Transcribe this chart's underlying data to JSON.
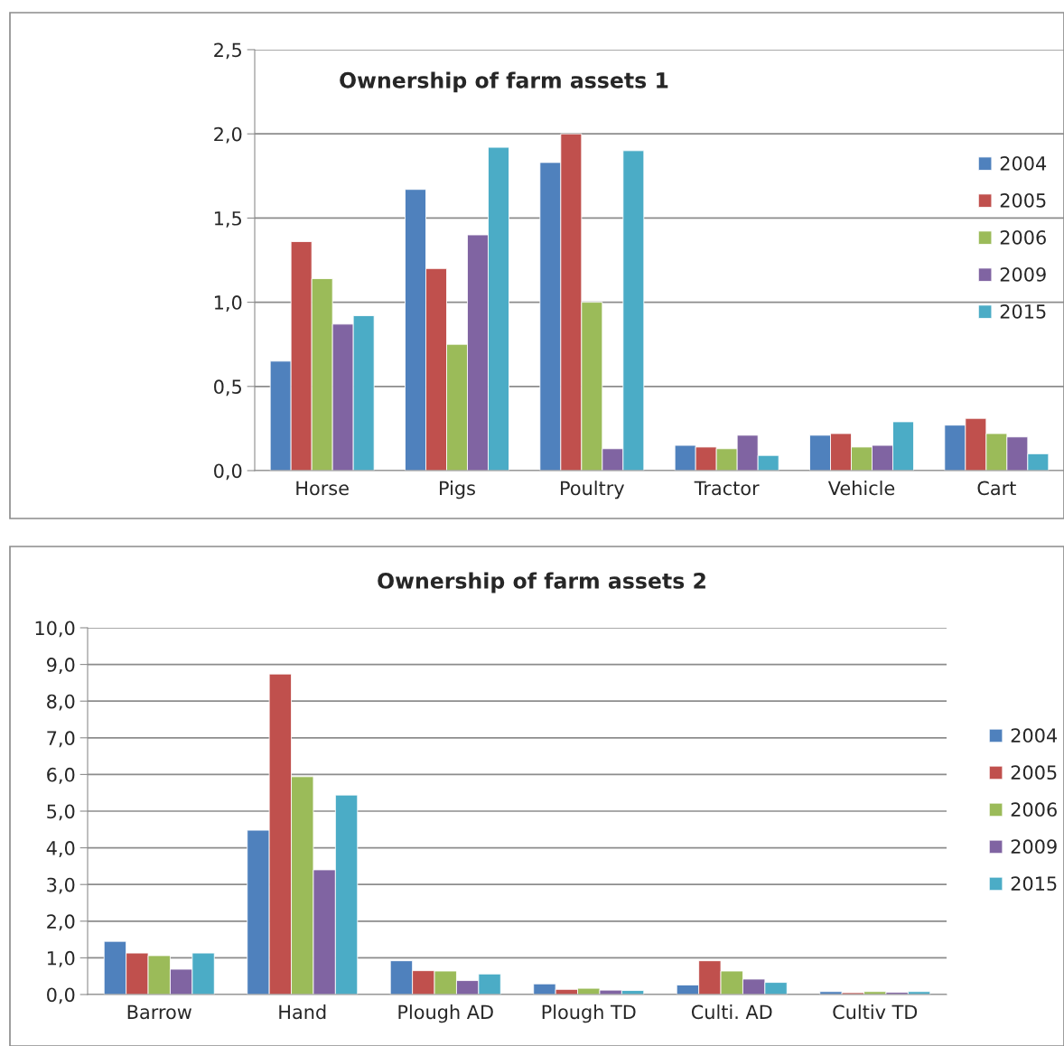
{
  "chart_data": [
    {
      "type": "bar",
      "title": "Ownership of farm assets 1",
      "categories": [
        "Horse",
        "Pigs",
        "Poultry",
        "Tractor",
        "Vehicle",
        "Cart"
      ],
      "series": [
        {
          "name": "2004",
          "color": "#4f81bd",
          "values": [
            0.65,
            1.67,
            1.83,
            0.15,
            0.21,
            0.27
          ]
        },
        {
          "name": "2005",
          "color": "#c0504d",
          "values": [
            1.36,
            1.2,
            2.0,
            0.14,
            0.22,
            0.31
          ]
        },
        {
          "name": "2006",
          "color": "#9bbb59",
          "values": [
            1.14,
            0.75,
            1.0,
            0.13,
            0.14,
            0.22
          ]
        },
        {
          "name": "2009",
          "color": "#8064a2",
          "values": [
            0.87,
            1.4,
            0.13,
            0.21,
            0.15,
            0.2
          ]
        },
        {
          "name": "2015",
          "color": "#4bacc6",
          "values": [
            0.92,
            1.92,
            1.9,
            0.09,
            0.29,
            0.1
          ]
        }
      ],
      "ylim": [
        0,
        2.5
      ],
      "yticks": [
        {
          "value": 0,
          "label": "0,0"
        },
        {
          "value": 0.5,
          "label": "0,5"
        },
        {
          "value": 1,
          "label": "1,0"
        },
        {
          "value": 1.5,
          "label": "1,5"
        },
        {
          "value": 2,
          "label": "2,0"
        },
        {
          "value": 2.5,
          "label": "2,5"
        }
      ],
      "grid": "y",
      "legend": "right"
    },
    {
      "type": "bar",
      "title": "Ownership of farm assets 2",
      "categories": [
        "Barrow",
        "Hand",
        "Plough AD",
        "Plough TD",
        "Culti. AD",
        "Cultiv TD"
      ],
      "series": [
        {
          "name": "2004",
          "color": "#4f81bd",
          "values": [
            1.45,
            4.48,
            0.92,
            0.29,
            0.26,
            0.08
          ]
        },
        {
          "name": "2005",
          "color": "#c0504d",
          "values": [
            1.13,
            8.74,
            0.65,
            0.14,
            0.92,
            0.05
          ]
        },
        {
          "name": "2006",
          "color": "#9bbb59",
          "values": [
            1.06,
            5.94,
            0.64,
            0.17,
            0.64,
            0.08
          ]
        },
        {
          "name": "2009",
          "color": "#8064a2",
          "values": [
            0.69,
            3.4,
            0.38,
            0.12,
            0.42,
            0.06
          ]
        },
        {
          "name": "2015",
          "color": "#4bacc6",
          "values": [
            1.13,
            5.44,
            0.56,
            0.11,
            0.33,
            0.08
          ]
        }
      ],
      "ylim": [
        0,
        10
      ],
      "yticks": [
        {
          "value": 0,
          "label": "0,0"
        },
        {
          "value": 1,
          "label": "1,0"
        },
        {
          "value": 2,
          "label": "2,0"
        },
        {
          "value": 3,
          "label": "3,0"
        },
        {
          "value": 4,
          "label": "4,0"
        },
        {
          "value": 5,
          "label": "5,0"
        },
        {
          "value": 6,
          "label": "6,0"
        },
        {
          "value": 7,
          "label": "7,0"
        },
        {
          "value": 8,
          "label": "8,0"
        },
        {
          "value": 9,
          "label": "9,0"
        },
        {
          "value": 10,
          "label": "10,0"
        }
      ],
      "grid": "y",
      "legend": "right"
    }
  ]
}
